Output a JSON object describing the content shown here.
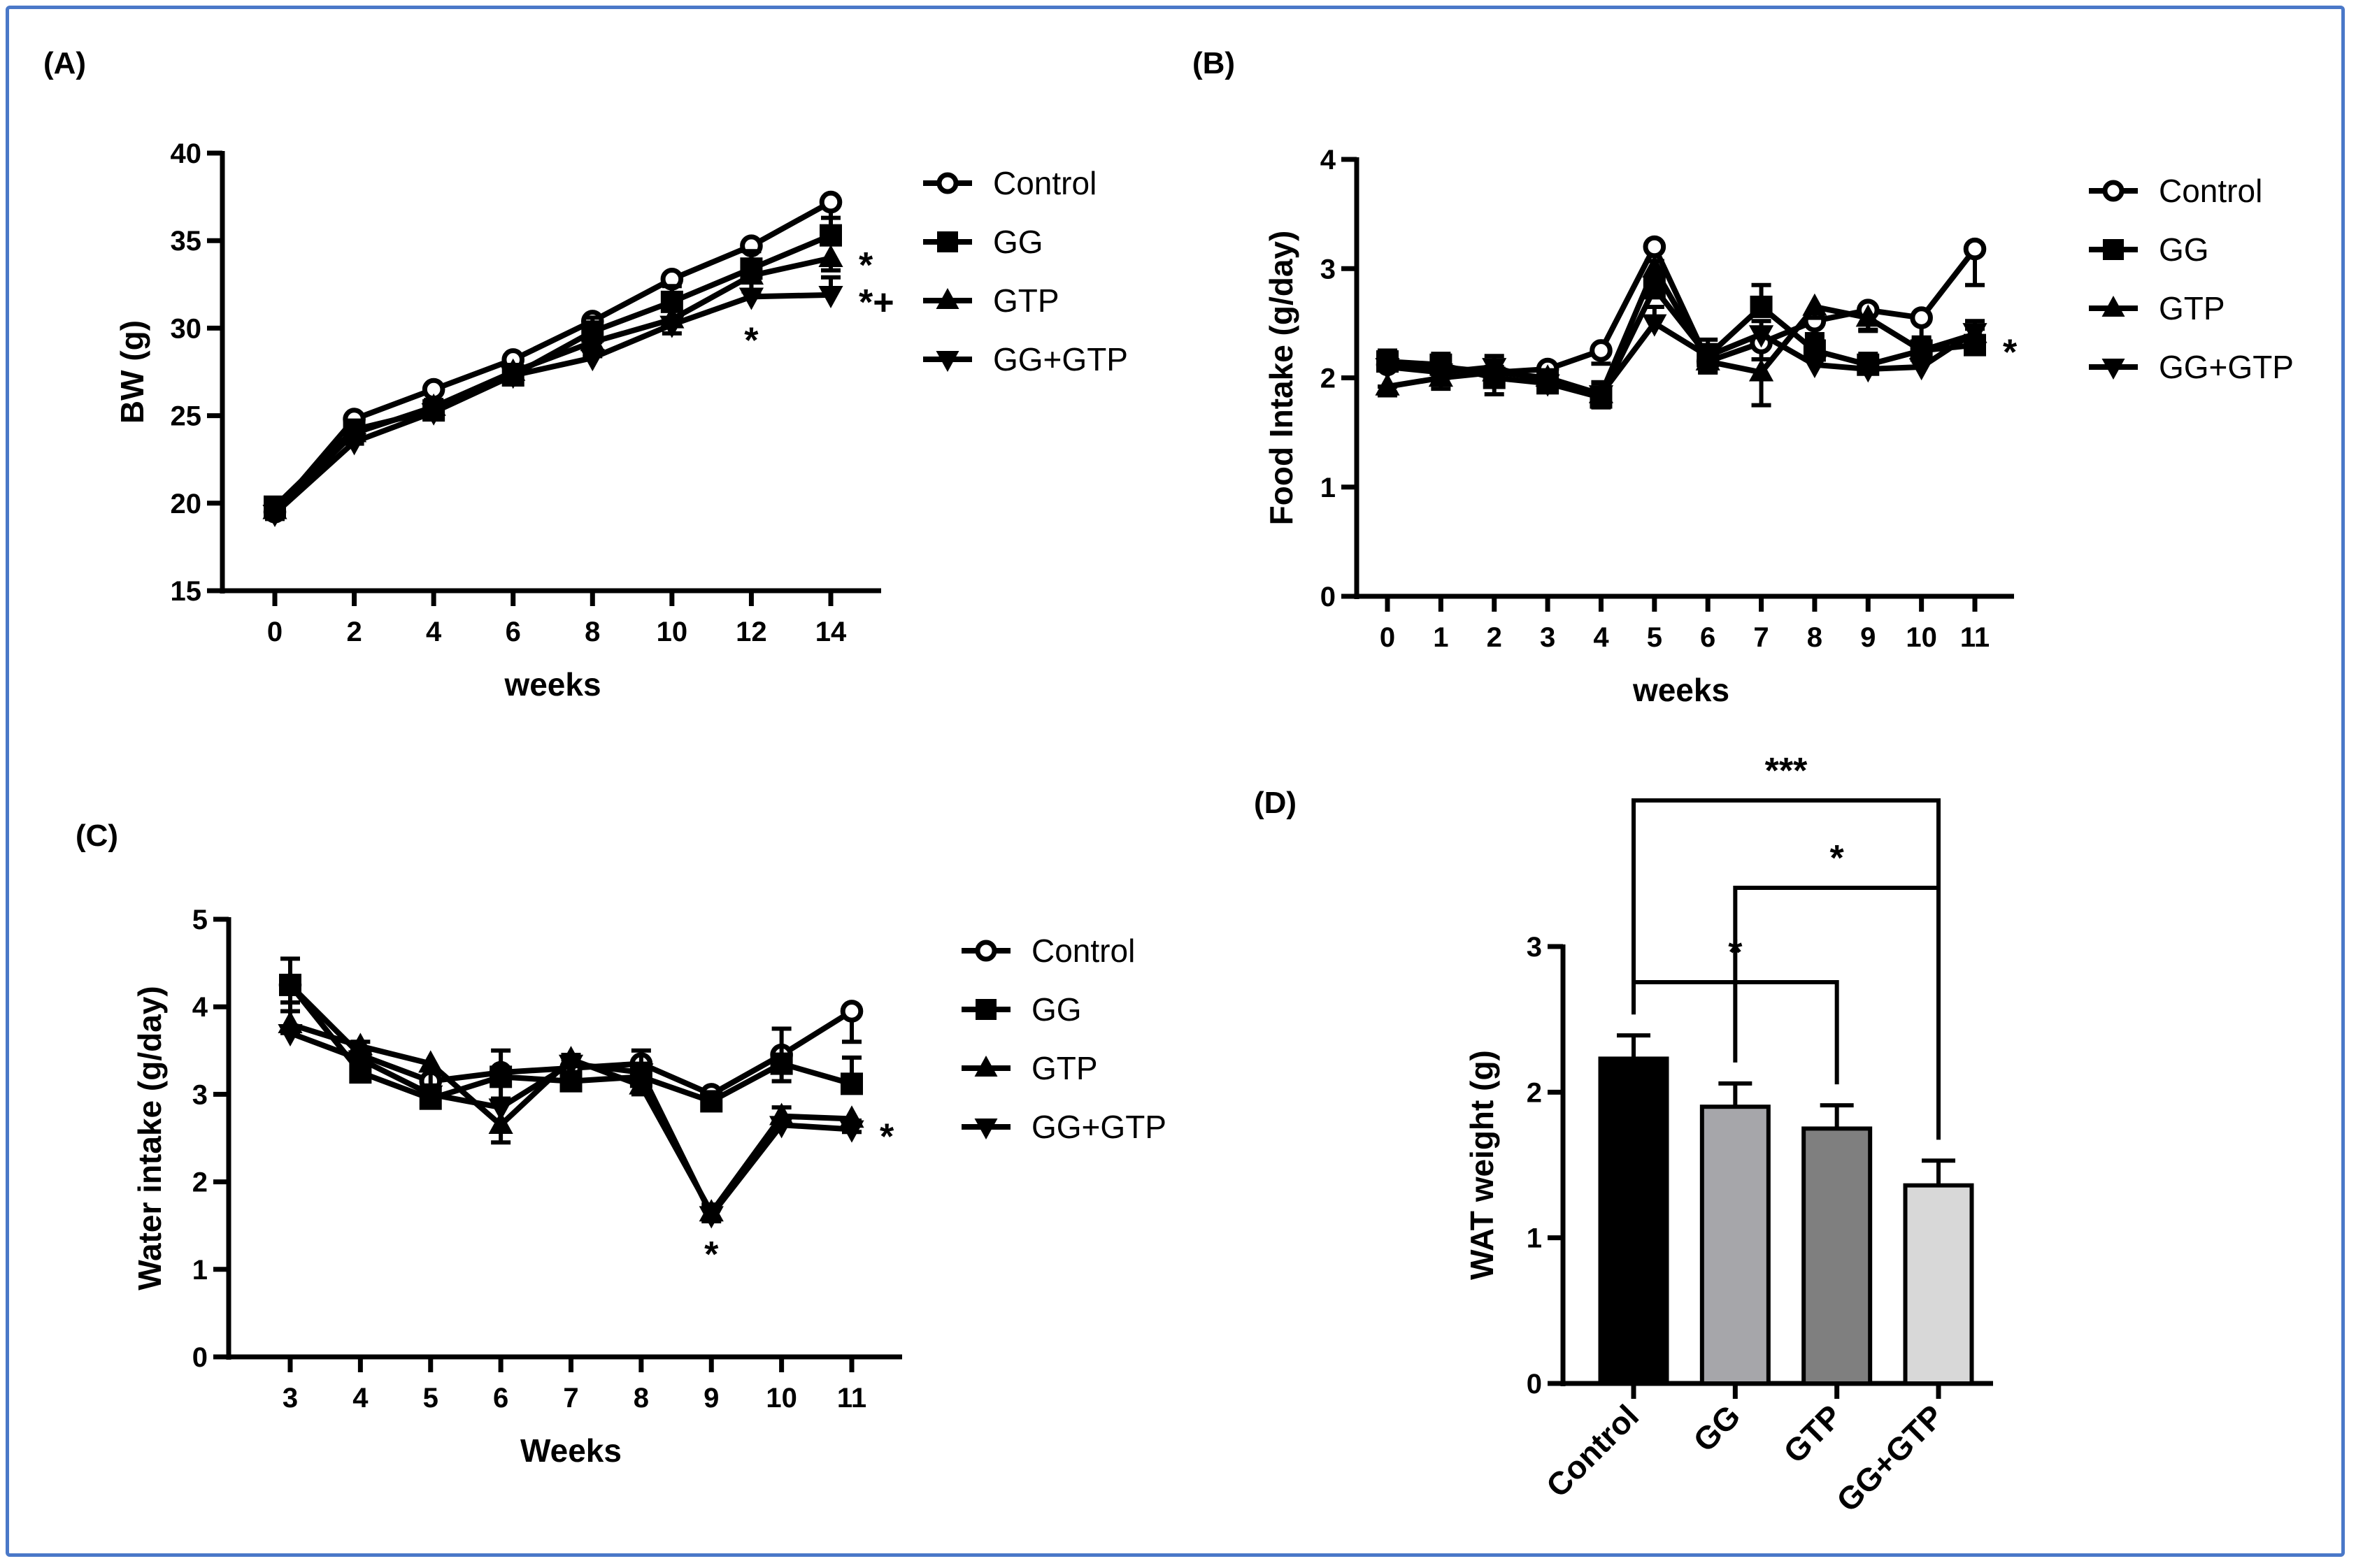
{
  "chart_data": [
    {
      "panel": "(A)",
      "type": "line",
      "xlabel": "weeks",
      "ylabel": "BW (g)",
      "ylim": [
        15,
        40
      ],
      "yticks": [
        15,
        20,
        25,
        30,
        35,
        40
      ],
      "x": [
        0,
        2,
        4,
        6,
        8,
        10,
        12,
        14
      ],
      "series": [
        {
          "name": "Control",
          "marker": "open-circle",
          "values": [
            19.5,
            24.8,
            26.5,
            28.2,
            30.4,
            32.8,
            34.7,
            37.2
          ],
          "err": [
            0.4,
            0.5,
            0.6,
            0.8,
            1.0,
            1.0,
            1.3,
            1.4
          ]
        },
        {
          "name": "GG",
          "marker": "filled-square",
          "values": [
            19.8,
            24.2,
            25.3,
            27.3,
            29.8,
            31.5,
            33.4,
            35.3
          ],
          "err": [
            0.3,
            0.5,
            0.5,
            0.6,
            0.8,
            0.9,
            1.0,
            1.0
          ]
        },
        {
          "name": "GTP",
          "marker": "triangle-up",
          "values": [
            19.6,
            24.0,
            25.5,
            27.5,
            29.2,
            30.5,
            33.0,
            34.0
          ],
          "err": [
            0.3,
            0.6,
            0.5,
            0.6,
            0.8,
            0.8,
            0.9,
            0.7
          ]
        },
        {
          "name": "GG+GTP",
          "marker": "triangle-down",
          "values": [
            19.4,
            23.5,
            25.2,
            27.3,
            28.3,
            30.2,
            31.8,
            31.9
          ],
          "err": [
            0.3,
            0.7,
            0.5,
            0.6,
            0.9,
            0.8,
            0.9,
            1.0
          ]
        }
      ],
      "annotations": [
        {
          "x": 12,
          "y": 30.2,
          "text": "*"
        },
        {
          "x": 14,
          "y": 34.0,
          "text": "*",
          "right": true
        },
        {
          "x": 14,
          "y": 31.9,
          "text": "*+",
          "right": true
        }
      ]
    },
    {
      "panel": "(B)",
      "type": "line",
      "xlabel": "weeks",
      "ylabel": "Food  Intake (g/day)",
      "ylim": [
        0,
        4
      ],
      "yticks": [
        0,
        1,
        2,
        3,
        4
      ],
      "x": [
        0,
        1,
        2,
        3,
        4,
        5,
        6,
        7,
        8,
        9,
        10,
        11
      ],
      "series": [
        {
          "name": "Control",
          "marker": "open-circle",
          "values": [
            2.12,
            2.1,
            2.05,
            2.08,
            2.25,
            3.2,
            2.15,
            2.32,
            2.52,
            2.62,
            2.55,
            3.18
          ],
          "err": [
            0.2,
            0.1,
            0.2,
            0.12,
            0.12,
            0.28,
            0.1,
            0.15,
            0.15,
            0.18,
            0.2,
            0.33
          ]
        },
        {
          "name": "GG",
          "marker": "filled-square",
          "values": [
            2.15,
            2.12,
            2.0,
            1.95,
            1.82,
            2.82,
            2.2,
            2.65,
            2.25,
            2.12,
            2.25,
            2.3
          ],
          "err": [
            0.1,
            0.1,
            0.1,
            0.12,
            0.14,
            0.25,
            0.15,
            0.2,
            0.15,
            0.1,
            0.12,
            0.15
          ]
        },
        {
          "name": "GTP",
          "marker": "triangle-up",
          "values": [
            1.92,
            2.0,
            2.05,
            2.0,
            1.85,
            3.0,
            2.15,
            2.05,
            2.65,
            2.55,
            2.25,
            2.4
          ],
          "err": [
            0.08,
            0.1,
            0.1,
            0.1,
            0.12,
            0.2,
            0.1,
            0.3,
            0.1,
            0.12,
            0.1,
            0.1
          ]
        },
        {
          "name": "GG+GTP",
          "marker": "triangle-down",
          "values": [
            2.1,
            2.05,
            2.1,
            1.95,
            1.85,
            2.5,
            2.2,
            2.4,
            2.12,
            2.08,
            2.1,
            2.42
          ],
          "err": [
            0.1,
            0.1,
            0.1,
            0.1,
            0.1,
            0.15,
            0.1,
            0.12,
            0.1,
            0.1,
            0.1,
            0.1
          ]
        }
      ],
      "annotations": [
        {
          "x": 11,
          "y": 2.3,
          "text": "*",
          "right": true
        }
      ]
    },
    {
      "panel": "(C)",
      "type": "line",
      "xlabel": "Weeks",
      "ylabel": "Water intake (g/day)",
      "ylim": [
        0,
        5
      ],
      "yticks": [
        0,
        1,
        2,
        3,
        4,
        5
      ],
      "x": [
        3,
        4,
        5,
        6,
        7,
        8,
        9,
        10,
        11
      ],
      "series": [
        {
          "name": "Control",
          "marker": "open-circle",
          "values": [
            4.25,
            3.45,
            3.15,
            3.25,
            3.3,
            3.35,
            3.0,
            3.45,
            3.95
          ],
          "err": [
            0.3,
            0.25,
            0.3,
            0.3,
            0.25,
            0.15,
            0.1,
            0.3,
            0.35
          ]
        },
        {
          "name": "GG",
          "marker": "filled-square",
          "values": [
            4.25,
            3.25,
            2.95,
            3.2,
            3.15,
            3.2,
            2.92,
            3.35,
            3.12
          ],
          "err": [
            0.3,
            0.35,
            0.15,
            0.3,
            0.25,
            0.3,
            0.1,
            0.4,
            0.3
          ]
        },
        {
          "name": "GTP",
          "marker": "triangle-up",
          "values": [
            3.8,
            3.55,
            3.35,
            2.65,
            3.4,
            3.1,
            1.65,
            2.75,
            2.72
          ],
          "err": [
            0.1,
            0.15,
            0.45,
            0.2,
            0.2,
            0.1,
            0.1,
            0.1,
            0.15
          ]
        },
        {
          "name": "GG+GTP",
          "marker": "triangle-down",
          "values": [
            3.7,
            3.4,
            3.0,
            2.85,
            3.35,
            3.25,
            1.62,
            2.65,
            2.6
          ],
          "err": [
            0.35,
            0.1,
            0.1,
            0.1,
            0.1,
            0.1,
            0.12,
            0.2,
            0.1
          ]
        }
      ],
      "annotations": [
        {
          "x": 9,
          "y": 1.35,
          "text": "*"
        },
        {
          "x": 11,
          "y": 2.6,
          "text": "*",
          "right": true
        }
      ]
    },
    {
      "panel": "(D)",
      "type": "bar",
      "xlabel": "",
      "ylabel": "WAT weight (g)",
      "ylim": [
        0,
        3
      ],
      "yticks": [
        0,
        1,
        2,
        3
      ],
      "categories": [
        "Control",
        "GG",
        "GTP",
        "GG+GTP"
      ],
      "values": [
        2.23,
        1.9,
        1.75,
        1.36
      ],
      "err": [
        0.16,
        0.16,
        0.16,
        0.17
      ],
      "colors": [
        "#000000",
        "#a6a6aa",
        "#7f7f7f",
        "#d8d8d8"
      ],
      "brackets": [
        {
          "from": 0,
          "to": 2,
          "text": "*"
        },
        {
          "from": 1,
          "to": 3,
          "text": "*"
        },
        {
          "from": 0,
          "to": 3,
          "text": "***"
        }
      ]
    }
  ]
}
